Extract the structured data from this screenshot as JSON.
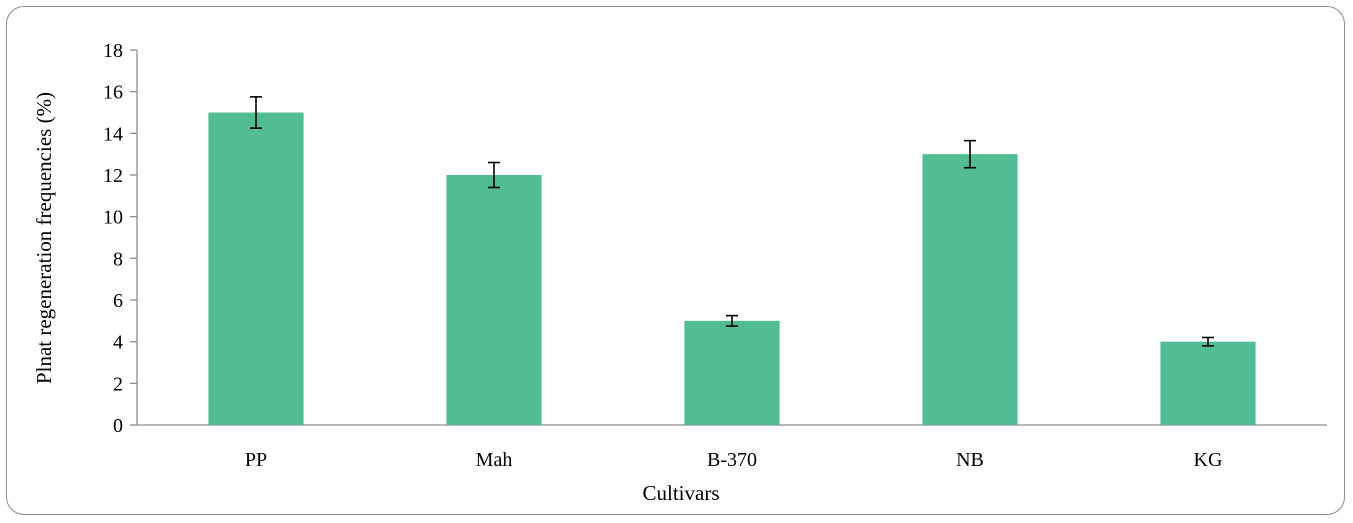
{
  "chart_data": {
    "type": "bar",
    "title": "",
    "xlabel": "Cultivars",
    "ylabel": "Plnat regeneration frequencies (%)",
    "categories": [
      "PP",
      "Mah",
      "B-370",
      "NB",
      "KG"
    ],
    "values": [
      15,
      12,
      5,
      13,
      4
    ],
    "errors": [
      0.75,
      0.6,
      0.25,
      0.65,
      0.2
    ],
    "ylim": [
      0,
      18
    ],
    "yticks": [
      0,
      2,
      4,
      6,
      8,
      10,
      12,
      14,
      16,
      18
    ],
    "grid": false,
    "legend": "none",
    "bar_color": "#52bd95",
    "error_bar_color": "#000000"
  }
}
